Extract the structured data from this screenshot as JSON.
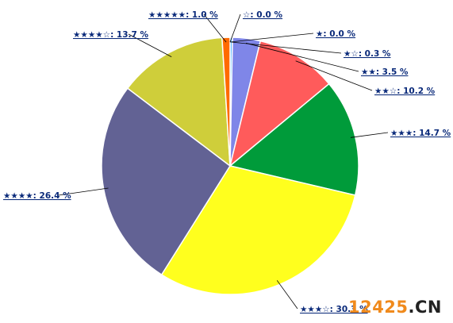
{
  "chart_data": {
    "type": "pie",
    "categories": [
      "☆",
      "★",
      "★☆",
      "★★",
      "★★☆",
      "★★★",
      "★★★☆",
      "★★★★",
      "★★★★☆",
      "★★★★★"
    ],
    "values": [
      0.0,
      0.0,
      0.3,
      3.5,
      10.2,
      14.7,
      30.3,
      26.4,
      13.7,
      1.0
    ],
    "labels": [
      "☆: 0.0 %",
      "★: 0.0 %",
      "★☆: 0.3 %",
      "★★: 3.5 %",
      "★★☆: 10.2 %",
      "★★★: 14.7 %",
      "★★★☆: 30.3 %",
      "★★★★: 26.4 %",
      "★★★★☆: 13.7 %",
      "★★★★★: 1.0 %"
    ],
    "colors": [
      "#e8e8e8",
      "#f5c400",
      "#5fb8ff",
      "#7f86e8",
      "#ff5b5b",
      "#009b3a",
      "#ffff1e",
      "#626294",
      "#cfce3a",
      "#ff6a00"
    ],
    "start_angle_deg": 0,
    "direction": "clockwise",
    "legend": "none"
  },
  "watermark": {
    "number": "12425",
    "suffix": ".CN"
  }
}
